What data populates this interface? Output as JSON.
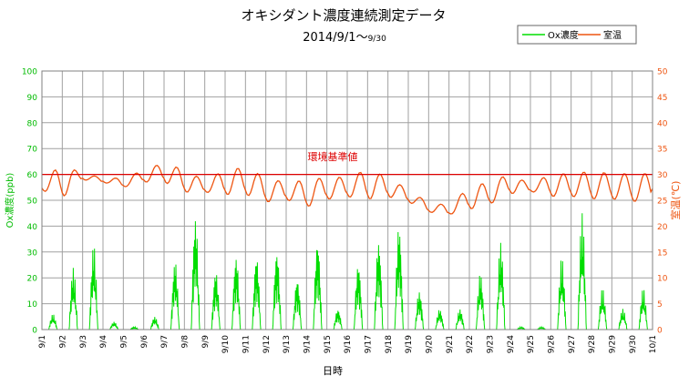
{
  "chart_data": {
    "type": "line",
    "title": "オキシダント濃度連続測定データ",
    "subtitle_main": "2014/9/1～",
    "subtitle_end": "9/30",
    "xlabel": "日時",
    "ylabel_left": "Ox濃度(ppb)",
    "ylabel_right": "室温(℃)",
    "ylim_left": [
      0,
      100
    ],
    "ylim_right": [
      0,
      50
    ],
    "yticks_left": [
      "0",
      "10",
      "20",
      "30",
      "40",
      "50",
      "60",
      "70",
      "80",
      "90",
      "100"
    ],
    "yticks_right": [
      "0",
      "5",
      "10",
      "15",
      "20",
      "25",
      "30",
      "35",
      "40",
      "45",
      "50"
    ],
    "x_range_days": [
      0,
      30
    ],
    "x_ticks": [
      "9/1",
      "9/2",
      "9/3",
      "9/4",
      "9/5",
      "9/6",
      "9/7",
      "9/8",
      "9/9",
      "9/10",
      "9/11",
      "9/12",
      "9/13",
      "9/14",
      "9/15",
      "9/16",
      "9/17",
      "9/18",
      "9/19",
      "9/20",
      "9/21",
      "9/22",
      "9/23",
      "9/24",
      "9/25",
      "9/26",
      "9/27",
      "9/28",
      "9/29",
      "9/30",
      "10/1"
    ],
    "grid": true,
    "legend_position": "top-right",
    "reference_line": {
      "label": "環境基準値",
      "axis": "left",
      "value": 60,
      "color": "#dd0000"
    },
    "series": [
      {
        "name": "Ox濃度",
        "axis": "left",
        "color": "#00dd00",
        "daily_peaks": [
          6,
          24,
          33,
          3,
          1,
          5,
          27,
          44,
          23,
          29,
          29,
          31,
          20,
          35,
          8,
          26,
          35,
          41,
          15,
          8,
          8,
          22,
          34,
          1,
          1,
          28,
          45,
          16,
          8,
          16
        ]
      },
      {
        "name": "室温",
        "axis": "right",
        "color": "#ee5511",
        "daily": [
          {
            "day": "9/1",
            "min": 27.0,
            "max": 29.5
          },
          {
            "day": "9/2",
            "min": 25.5,
            "max": 32.0
          },
          {
            "day": "9/3",
            "min": 29.0,
            "max": 30.5
          },
          {
            "day": "9/4",
            "min": 28.5,
            "max": 29.5
          },
          {
            "day": "9/5",
            "min": 27.5,
            "max": 29.5
          },
          {
            "day": "9/6",
            "min": 28.5,
            "max": 31.0
          },
          {
            "day": "9/7",
            "min": 28.5,
            "max": 32.5
          },
          {
            "day": "9/8",
            "min": 26.5,
            "max": 31.0
          },
          {
            "day": "9/9",
            "min": 26.5,
            "max": 29.0
          },
          {
            "day": "9/10",
            "min": 26.0,
            "max": 31.0
          },
          {
            "day": "9/11",
            "min": 26.0,
            "max": 31.5
          },
          {
            "day": "9/12",
            "min": 24.5,
            "max": 29.5
          },
          {
            "day": "9/13",
            "min": 25.0,
            "max": 28.5
          },
          {
            "day": "9/14",
            "min": 23.5,
            "max": 29.0
          },
          {
            "day": "9/15",
            "min": 25.0,
            "max": 29.5
          },
          {
            "day": "9/16",
            "min": 25.5,
            "max": 29.5
          },
          {
            "day": "9/17",
            "min": 25.0,
            "max": 31.0
          },
          {
            "day": "9/18",
            "min": 25.5,
            "max": 29.5
          },
          {
            "day": "9/19",
            "min": 24.5,
            "max": 27.0
          },
          {
            "day": "9/20",
            "min": 22.5,
            "max": 24.5
          },
          {
            "day": "9/21",
            "min": 22.0,
            "max": 24.0
          },
          {
            "day": "9/22",
            "min": 23.0,
            "max": 27.5
          },
          {
            "day": "9/23",
            "min": 24.0,
            "max": 28.5
          },
          {
            "day": "9/24",
            "min": 26.0,
            "max": 30.0
          },
          {
            "day": "9/25",
            "min": 26.5,
            "max": 28.0
          },
          {
            "day": "9/26",
            "min": 25.5,
            "max": 30.0
          },
          {
            "day": "9/27",
            "min": 25.5,
            "max": 30.0
          },
          {
            "day": "9/28",
            "min": 25.0,
            "max": 30.5
          },
          {
            "day": "9/29",
            "min": 25.0,
            "max": 30.0
          },
          {
            "day": "9/30",
            "min": 24.5,
            "max": 30.0
          }
        ]
      }
    ]
  }
}
